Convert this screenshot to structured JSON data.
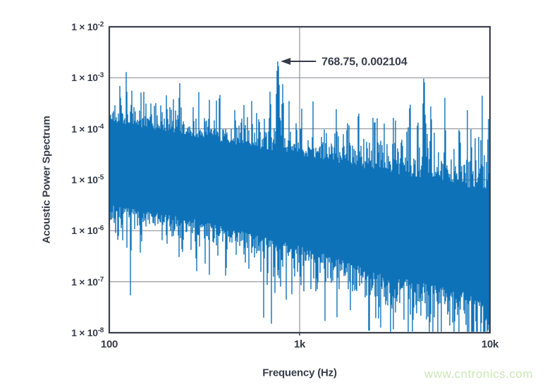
{
  "watermark": {
    "text": "www.cntronics.com",
    "color": "#c9e7b6"
  },
  "chart_data": {
    "type": "line",
    "title": "",
    "xlabel": "Frequency (Hz)",
    "ylabel": "Acoustic Power Spectrum",
    "x_scale": "log",
    "y_scale": "log",
    "xlim": [
      100,
      10000
    ],
    "ylim": [
      1e-08,
      0.01
    ],
    "grid": true,
    "legend": "none",
    "x_ticks": [
      {
        "value": 100,
        "label": "100"
      },
      {
        "value": 1000,
        "label": "1k"
      },
      {
        "value": 10000,
        "label": "10k"
      }
    ],
    "y_ticks": [
      {
        "value": 0.01,
        "base": "1 × 10",
        "exp": "-2"
      },
      {
        "value": 0.001,
        "base": "1 × 10",
        "exp": "-3"
      },
      {
        "value": 0.0001,
        "base": "1 × 10",
        "exp": "-4"
      },
      {
        "value": 1e-05,
        "base": "1 × 10",
        "exp": "-5"
      },
      {
        "value": 1e-06,
        "base": "1 × 10",
        "exp": "-6"
      },
      {
        "value": 1e-07,
        "base": "1 × 10",
        "exp": "-7"
      },
      {
        "value": 1e-08,
        "base": "1 × 10",
        "exp": "-8"
      }
    ],
    "colors": {
      "line": "#0e72b9",
      "grid": "#8f9298",
      "axis": "#3a3f4a",
      "text": "#363c49"
    },
    "annotation": {
      "label": "768.75, 0.002104",
      "x": 768.75,
      "y": 0.002104
    },
    "series": {
      "name": "acoustic-power-spectrum",
      "seed": 7,
      "noise_band": [
        [
          100,
          0.00014,
          3.2e-06
        ],
        [
          300,
          6.5e-05,
          1.6e-06
        ],
        [
          1000,
          3e-05,
          5e-07
        ],
        [
          3000,
          1.3e-05,
          1.3e-07
        ],
        [
          10000,
          6e-06,
          5e-08
        ]
      ],
      "peaks": [
        [
          114,
          0.0009,
          0.004
        ],
        [
          123,
          0.0015,
          0.004
        ],
        [
          131,
          0.0007,
          0.004
        ],
        [
          152,
          0.00055,
          0.003
        ],
        [
          166,
          0.0006,
          0.003
        ],
        [
          187,
          0.0005,
          0.003
        ],
        [
          234,
          0.00095,
          0.004
        ],
        [
          296,
          0.00065,
          0.003
        ],
        [
          380,
          0.0007,
          0.004
        ],
        [
          458,
          0.00045,
          0.003
        ],
        [
          560,
          0.00035,
          0.004
        ],
        [
          700,
          0.00055,
          0.006
        ],
        [
          768.75,
          0.002104,
          0.01
        ],
        [
          815,
          0.00075,
          0.006
        ],
        [
          880,
          0.00035,
          0.004
        ],
        [
          1175,
          0.00035,
          0.004
        ],
        [
          1560,
          0.00026,
          0.003
        ],
        [
          2050,
          0.00022,
          0.003
        ],
        [
          2480,
          0.00032,
          0.003
        ],
        [
          3100,
          0.00024,
          0.003
        ],
        [
          3800,
          0.00045,
          0.004
        ],
        [
          4500,
          0.00105,
          0.007
        ],
        [
          4900,
          0.00035,
          0.004
        ],
        [
          5800,
          0.00042,
          0.004
        ],
        [
          6900,
          0.00022,
          0.003
        ],
        [
          7600,
          0.00026,
          0.003
        ],
        [
          9100,
          0.00045,
          0.003
        ],
        [
          9800,
          0.00025,
          0.003
        ]
      ]
    }
  }
}
